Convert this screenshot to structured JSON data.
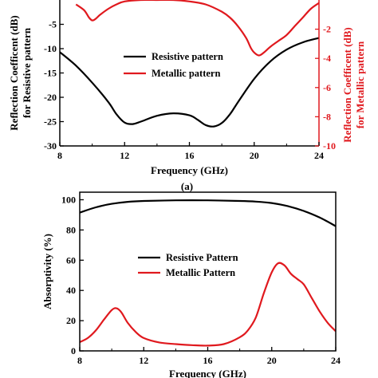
{
  "chart_data": [
    {
      "type": "line",
      "panel_label": "(a)",
      "xlabel": "Frequency (GHz)",
      "ylabel_left": "Reflection Coefficent (dB) for Resistive pattern",
      "ylabel_right": "Reflection Coefficent (dB) for Metallic pattern",
      "xlim": [
        8,
        24
      ],
      "ylim_left": [
        -30,
        0
      ],
      "ylim_right": [
        -10,
        0
      ],
      "x_ticks": [
        8,
        12,
        16,
        20,
        24
      ],
      "y_ticks_left": [
        -30,
        -25,
        -20,
        -15,
        -10,
        -5
      ],
      "y_ticks_right": [
        -10,
        -8,
        -6,
        -4,
        -2
      ],
      "legend_position": "center-right",
      "series": [
        {
          "name": "Resistive pattern",
          "axis": "left",
          "color": "#000000",
          "x": [
            8,
            9,
            10,
            11,
            11.5,
            12,
            12.5,
            13,
            14,
            15,
            16,
            16.5,
            17,
            17.5,
            18,
            18.5,
            19,
            20,
            21,
            22,
            23,
            24
          ],
          "y": [
            -10.7,
            -13.5,
            -17,
            -21,
            -23.5,
            -25.2,
            -25.5,
            -25,
            -23.8,
            -23.3,
            -23.7,
            -24.6,
            -25.7,
            -26,
            -25.3,
            -23.5,
            -21,
            -16.2,
            -12.6,
            -10.2,
            -8.7,
            -7.8
          ]
        },
        {
          "name": "Metallic pattern",
          "axis": "right",
          "color": "#e0191e",
          "x": [
            9,
            9.5,
            9.8,
            10,
            10.2,
            10.5,
            11,
            11.5,
            12,
            13,
            14,
            15,
            16,
            17,
            18,
            18.5,
            19,
            19.5,
            19.8,
            20,
            20.3,
            20.6,
            21,
            21.5,
            22,
            22.5,
            23,
            23.5,
            24
          ],
          "y": [
            -0.3,
            -0.7,
            -1.2,
            -1.4,
            -1.3,
            -1.0,
            -0.6,
            -0.3,
            -0.1,
            0.0,
            0.0,
            0.0,
            -0.1,
            -0.3,
            -0.8,
            -1.2,
            -1.8,
            -2.6,
            -3.3,
            -3.6,
            -3.8,
            -3.6,
            -3.2,
            -2.8,
            -2.4,
            -1.8,
            -1.2,
            -0.6,
            -0.2
          ]
        }
      ]
    },
    {
      "type": "line",
      "xlabel": "Frequency (GHz)",
      "ylabel": "Absorptivity (%)",
      "xlim": [
        8,
        24
      ],
      "ylim": [
        0,
        105
      ],
      "x_ticks": [
        8,
        12,
        16,
        20,
        24
      ],
      "y_ticks": [
        0,
        20,
        40,
        60,
        80,
        100
      ],
      "legend_position": "center-right",
      "series": [
        {
          "name": "Resistive Pattern",
          "color": "#000000",
          "x": [
            8,
            9,
            10,
            11,
            12,
            14,
            16,
            18,
            19,
            20,
            21,
            22,
            23,
            24
          ],
          "y": [
            91.5,
            95,
            97.3,
            98.6,
            99.2,
            99.6,
            99.6,
            99.2,
            98.8,
            97.8,
            95.8,
            92.6,
            88.2,
            82.5
          ]
        },
        {
          "name": "Metallic Pattern",
          "color": "#e0191e",
          "x": [
            8,
            8.5,
            9,
            9.5,
            10,
            10.3,
            10.6,
            11,
            11.5,
            12,
            13,
            14,
            15,
            16,
            17,
            18,
            18.5,
            19,
            19.5,
            20,
            20.4,
            20.8,
            21.2,
            21.6,
            22,
            22.5,
            23,
            23.5,
            24
          ],
          "y": [
            5.8,
            8.5,
            13.5,
            20.5,
            27,
            28.2,
            25.5,
            18.5,
            12.5,
            8.5,
            5.5,
            4.5,
            3.8,
            3.5,
            4.5,
            9,
            13.5,
            22,
            38,
            52,
            58,
            56.5,
            51,
            47.5,
            44,
            35,
            26,
            18.5,
            13
          ]
        }
      ]
    }
  ]
}
